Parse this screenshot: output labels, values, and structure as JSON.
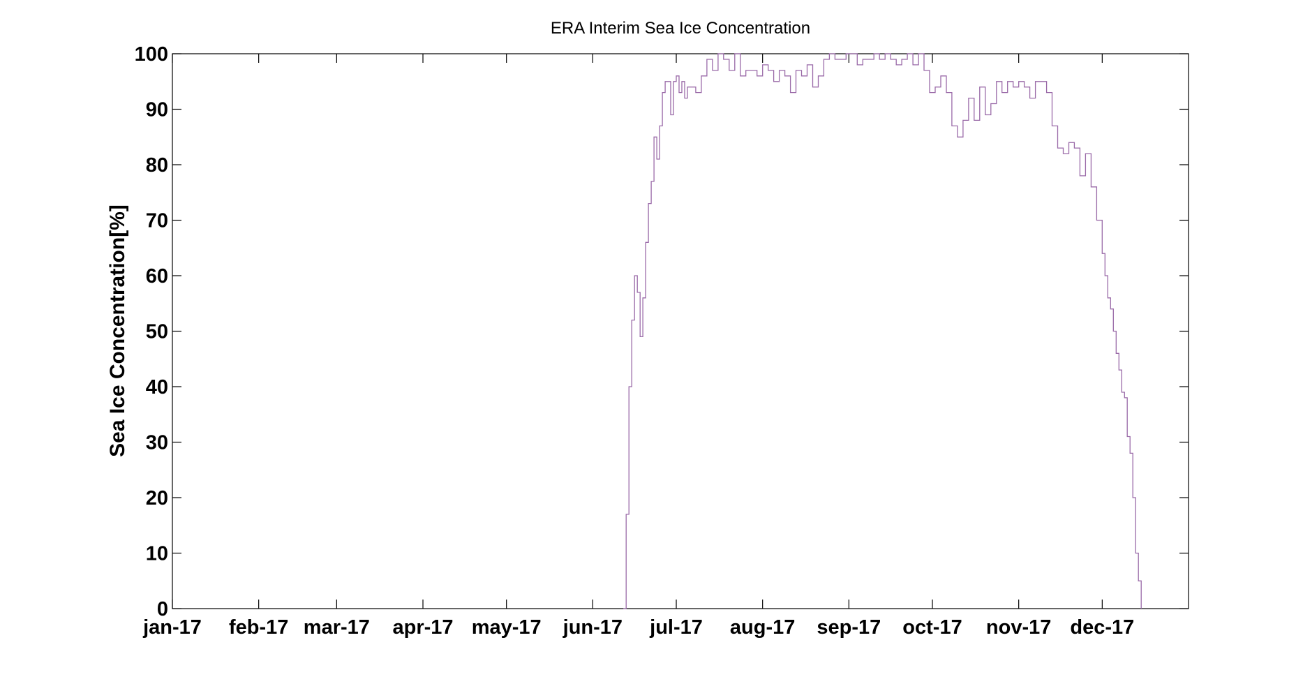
{
  "chart_data": {
    "type": "line",
    "title": "ERA Interim Sea Ice Concentration",
    "xlabel": "",
    "ylabel": "Sea Ice Concentration[%]",
    "ylim": [
      0,
      100
    ],
    "xlim": [
      "2017-01-01",
      "2018-01-01"
    ],
    "yticks": [
      "0",
      "10",
      "20",
      "30",
      "40",
      "50",
      "60",
      "70",
      "80",
      "90",
      "100"
    ],
    "xticks": [
      {
        "date": "2017-01-01",
        "label": "jan-17"
      },
      {
        "date": "2017-02-01",
        "label": "feb-17"
      },
      {
        "date": "2017-03-01",
        "label": "mar-17"
      },
      {
        "date": "2017-04-01",
        "label": "apr-17"
      },
      {
        "date": "2017-05-01",
        "label": "may-17"
      },
      {
        "date": "2017-06-01",
        "label": "jun-17"
      },
      {
        "date": "2017-07-01",
        "label": "jul-17"
      },
      {
        "date": "2017-08-01",
        "label": "aug-17"
      },
      {
        "date": "2017-09-01",
        "label": "sep-17"
      },
      {
        "date": "2017-10-01",
        "label": "oct-17"
      },
      {
        "date": "2017-11-01",
        "label": "nov-17"
      },
      {
        "date": "2017-12-01",
        "label": "dec-17"
      }
    ],
    "grid": false,
    "line_color": "#9a6aa8",
    "series": [
      {
        "x": [
          "2017-06-12",
          "2017-06-13",
          "2017-06-14",
          "2017-06-15",
          "2017-06-16",
          "2017-06-17",
          "2017-06-18",
          "2017-06-19",
          "2017-06-20",
          "2017-06-21",
          "2017-06-22",
          "2017-06-23",
          "2017-06-24",
          "2017-06-25",
          "2017-06-26",
          "2017-06-27",
          "2017-06-28",
          "2017-06-29",
          "2017-06-30",
          "2017-07-01",
          "2017-07-02",
          "2017-07-03",
          "2017-07-04",
          "2017-07-05",
          "2017-07-06",
          "2017-07-08",
          "2017-07-10",
          "2017-07-12",
          "2017-07-14",
          "2017-07-16",
          "2017-07-18",
          "2017-07-20",
          "2017-07-22",
          "2017-07-24",
          "2017-07-26",
          "2017-07-28",
          "2017-07-30",
          "2017-08-01",
          "2017-08-03",
          "2017-08-05",
          "2017-08-07",
          "2017-08-09",
          "2017-08-11",
          "2017-08-13",
          "2017-08-15",
          "2017-08-17",
          "2017-08-19",
          "2017-08-21",
          "2017-08-23",
          "2017-08-25",
          "2017-08-27",
          "2017-08-29",
          "2017-08-31",
          "2017-09-02",
          "2017-09-04",
          "2017-09-06",
          "2017-09-08",
          "2017-09-10",
          "2017-09-12",
          "2017-09-14",
          "2017-09-16",
          "2017-09-18",
          "2017-09-20",
          "2017-09-22",
          "2017-09-24",
          "2017-09-26",
          "2017-09-28",
          "2017-09-30",
          "2017-10-02",
          "2017-10-04",
          "2017-10-06",
          "2017-10-08",
          "2017-10-10",
          "2017-10-12",
          "2017-10-14",
          "2017-10-16",
          "2017-10-18",
          "2017-10-20",
          "2017-10-22",
          "2017-10-24",
          "2017-10-26",
          "2017-10-28",
          "2017-10-30",
          "2017-11-01",
          "2017-11-03",
          "2017-11-05",
          "2017-11-07",
          "2017-11-09",
          "2017-11-11",
          "2017-11-13",
          "2017-11-15",
          "2017-11-17",
          "2017-11-19",
          "2017-11-21",
          "2017-11-23",
          "2017-11-25",
          "2017-11-27",
          "2017-11-29",
          "2017-12-01",
          "2017-12-02",
          "2017-12-03",
          "2017-12-04",
          "2017-12-05",
          "2017-12-06",
          "2017-12-07",
          "2017-12-08",
          "2017-12-09",
          "2017-12-10",
          "2017-12-11",
          "2017-12-12",
          "2017-12-13",
          "2017-12-14",
          "2017-12-15"
        ],
        "y": [
          0,
          17,
          40,
          52,
          60,
          57,
          49,
          56,
          66,
          73,
          77,
          85,
          81,
          87,
          93,
          95,
          95,
          89,
          95,
          96,
          93,
          95,
          92,
          94,
          94,
          93,
          96,
          99,
          97,
          100,
          99,
          97,
          100,
          96,
          97,
          97,
          96,
          98,
          97,
          95,
          97,
          96,
          93,
          97,
          96,
          98,
          94,
          96,
          99,
          100,
          99,
          99,
          100,
          100,
          98,
          99,
          99,
          100,
          99,
          100,
          99,
          98,
          99,
          100,
          98,
          100,
          97,
          93,
          94,
          96,
          93,
          87,
          85,
          88,
          92,
          88,
          94,
          89,
          91,
          95,
          93,
          95,
          94,
          95,
          94,
          92,
          95,
          95,
          93,
          87,
          83,
          82,
          84,
          83,
          78,
          82,
          76,
          70,
          64,
          60,
          56,
          54,
          50,
          46,
          43,
          39,
          38,
          31,
          28,
          20,
          10,
          5,
          0
        ]
      }
    ]
  }
}
